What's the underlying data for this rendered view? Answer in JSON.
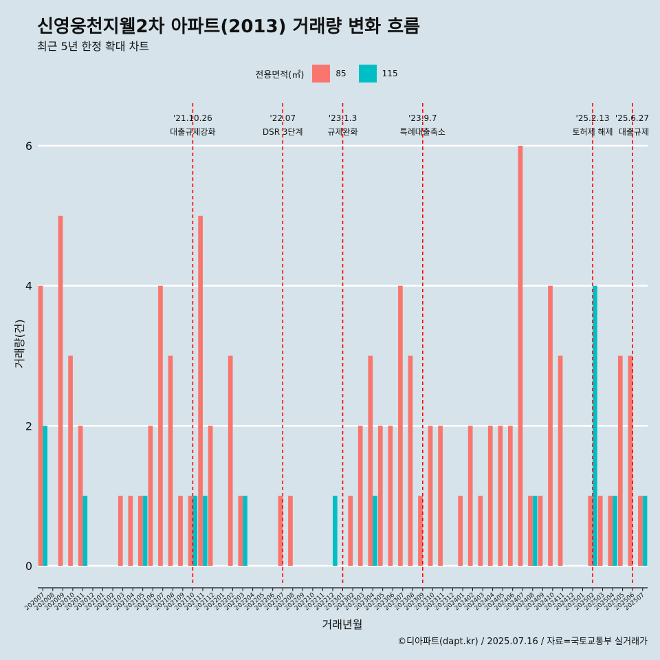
{
  "title": "신영웅천지웰2차 아파트(2013) 거래량 변화 흐름",
  "subtitle": "최근 5년 한정 확대 차트",
  "caption": "©디아파트(dapt.kr) / 2025.07.16 / 자료=국토교통부 실거래가",
  "colors": {
    "s85": "#f8766d",
    "s115": "#00bfc4",
    "event": "#ff0000",
    "grid": "#ffffff",
    "background": "#d6e3ea"
  },
  "chart_data": {
    "type": "bar",
    "title": "신영웅천지웰2차 아파트(2013) 거래량 변화 흐름",
    "xlabel": "거래년월",
    "ylabel": "거래량(건)",
    "ylim": [
      0,
      6
    ],
    "yticks": [
      0,
      2,
      4,
      6
    ],
    "legend_title": "전용면적(㎡)",
    "categories": [
      "202007",
      "202008",
      "202009",
      "202010",
      "202011",
      "202012",
      "202101",
      "202102",
      "202103",
      "202104",
      "202105",
      "202106",
      "202107",
      "202108",
      "202109",
      "202110",
      "202111",
      "202112",
      "202201",
      "202202",
      "202203",
      "202204",
      "202205",
      "202206",
      "202207",
      "202208",
      "202209",
      "202210",
      "202211",
      "202212",
      "202301",
      "202302",
      "202303",
      "202304",
      "202305",
      "202306",
      "202307",
      "202308",
      "202309",
      "202310",
      "202311",
      "202312",
      "202401",
      "202402",
      "202403",
      "202404",
      "202405",
      "202406",
      "202407",
      "202408",
      "202409",
      "202410",
      "202411",
      "202412",
      "202501",
      "202502",
      "202503",
      "202504",
      "202505",
      "202506",
      "202507"
    ],
    "series": [
      {
        "name": "85",
        "values": [
          4,
          0,
          5,
          3,
          2,
          0,
          0,
          0,
          1,
          1,
          1,
          2,
          4,
          3,
          1,
          1,
          5,
          2,
          0,
          3,
          1,
          0,
          0,
          0,
          1,
          1,
          0,
          0,
          0,
          0,
          0,
          1,
          2,
          3,
          2,
          2,
          4,
          3,
          1,
          2,
          2,
          0,
          1,
          2,
          1,
          2,
          2,
          2,
          6,
          1,
          1,
          4,
          3,
          0,
          0,
          1,
          1,
          1,
          3,
          3,
          1
        ]
      },
      {
        "name": "115",
        "values": [
          2,
          0,
          0,
          0,
          1,
          0,
          0,
          0,
          0,
          0,
          1,
          0,
          0,
          0,
          0,
          1,
          1,
          0,
          0,
          0,
          1,
          0,
          0,
          0,
          0,
          0,
          0,
          0,
          0,
          1,
          0,
          0,
          0,
          1,
          0,
          0,
          0,
          0,
          0,
          0,
          0,
          0,
          0,
          0,
          0,
          0,
          0,
          0,
          0,
          1,
          0,
          0,
          0,
          0,
          0,
          4,
          0,
          1,
          0,
          0,
          1
        ]
      }
    ],
    "events": [
      {
        "date": "'21.10.26",
        "label": "대출규제강화",
        "month": "202110"
      },
      {
        "date": "'22.07",
        "label": "DSR 3단계",
        "month": "202207"
      },
      {
        "date": "'23.1.3",
        "label": "규제완화",
        "month": "202301"
      },
      {
        "date": "'23.9.7",
        "label": "특례대출축소",
        "month": "202309"
      },
      {
        "date": "'25.2.13",
        "label": "토허제 해제",
        "month": "202502"
      },
      {
        "date": "'25.6.27",
        "label": "대출규제",
        "month": "202506"
      }
    ]
  }
}
